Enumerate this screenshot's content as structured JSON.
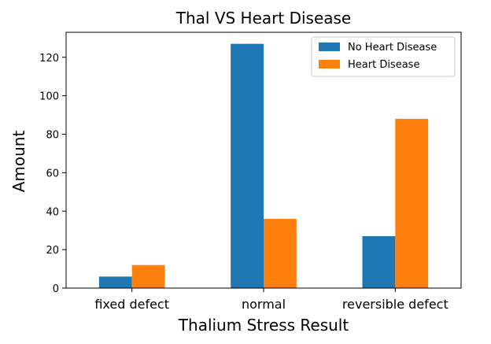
{
  "chart_data": {
    "type": "bar",
    "title": "Thal VS Heart Disease",
    "xlabel": "Thalium Stress Result",
    "ylabel": "Amount",
    "categories": [
      "fixed defect",
      "normal",
      "reversible defect"
    ],
    "series": [
      {
        "name": "No Heart Disease",
        "values": [
          6,
          127,
          27
        ],
        "color": "#1f77b4"
      },
      {
        "name": "Heart Disease",
        "values": [
          12,
          36,
          88
        ],
        "color": "#ff7f0e"
      }
    ],
    "ylim": [
      0,
      133
    ],
    "yticks": [
      0,
      20,
      40,
      60,
      80,
      100,
      120
    ],
    "grid": false,
    "legend_position": "top-right"
  }
}
